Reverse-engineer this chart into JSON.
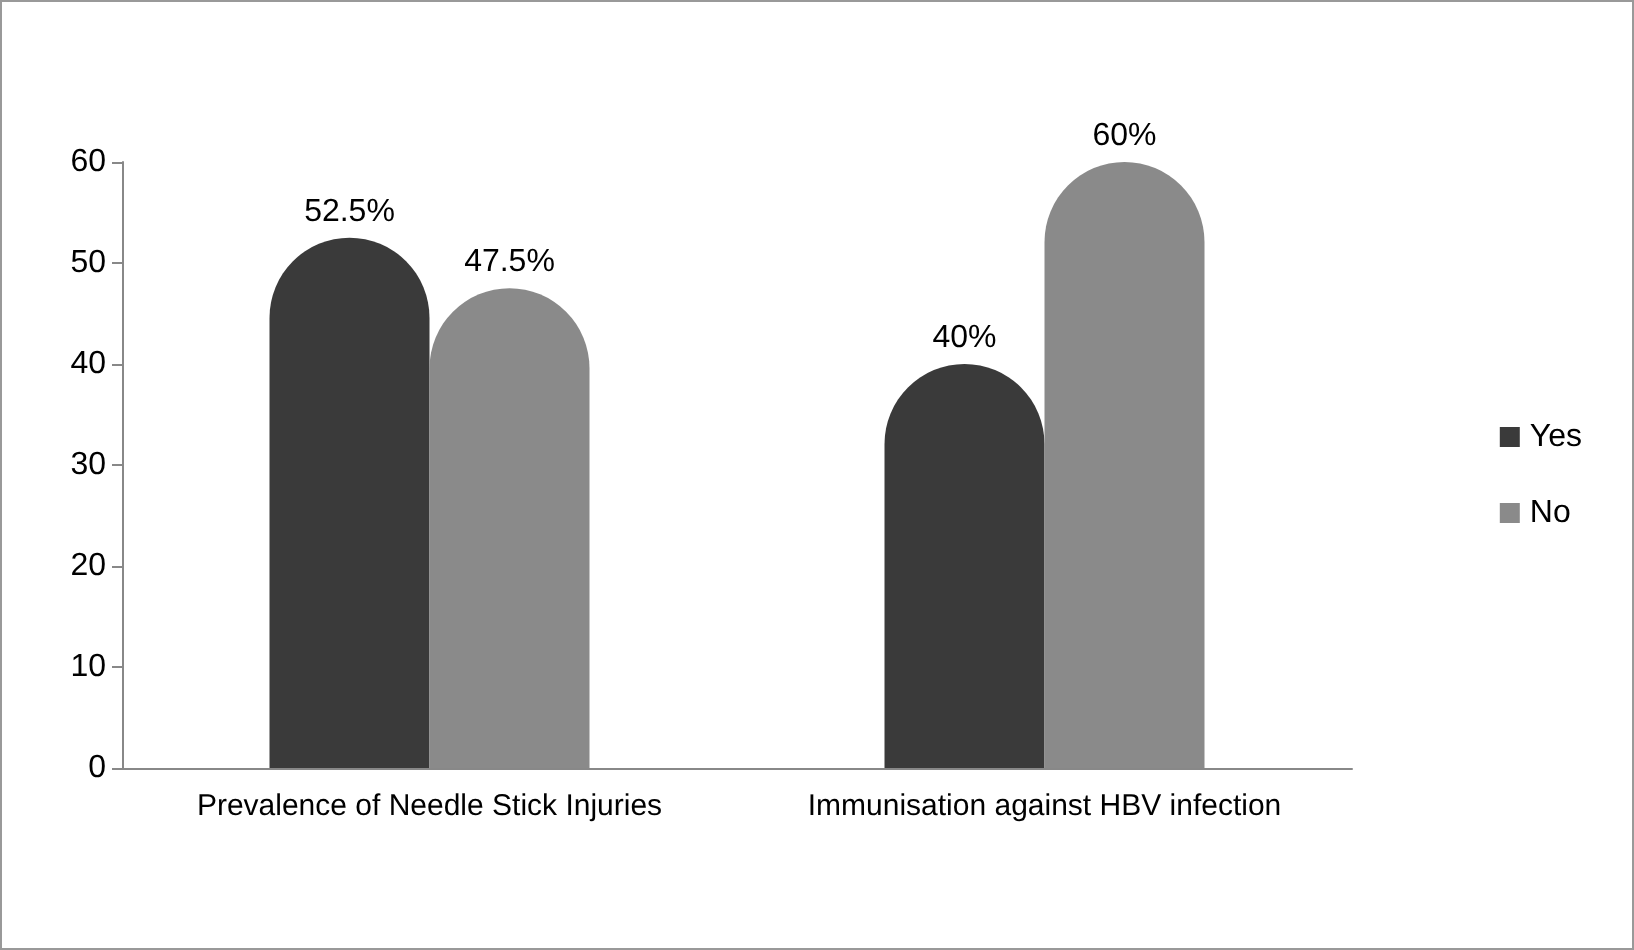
{
  "chart_data": {
    "type": "bar",
    "categories": [
      "Prevalence of Needle Stick Injuries",
      "Immunisation against HBV infection"
    ],
    "series": [
      {
        "name": "Yes",
        "color": "#3a3a3a",
        "values": [
          52.5,
          40
        ],
        "value_labels": [
          "52.5%",
          "40%"
        ]
      },
      {
        "name": "No",
        "color": "#8a8a8a",
        "values": [
          47.5,
          60
        ],
        "value_labels": [
          "47.5%",
          "60%"
        ]
      }
    ],
    "ylim": [
      0,
      60
    ],
    "yticks": [
      0,
      10,
      20,
      30,
      40,
      50,
      60
    ],
    "grid": false,
    "legend": "right"
  }
}
